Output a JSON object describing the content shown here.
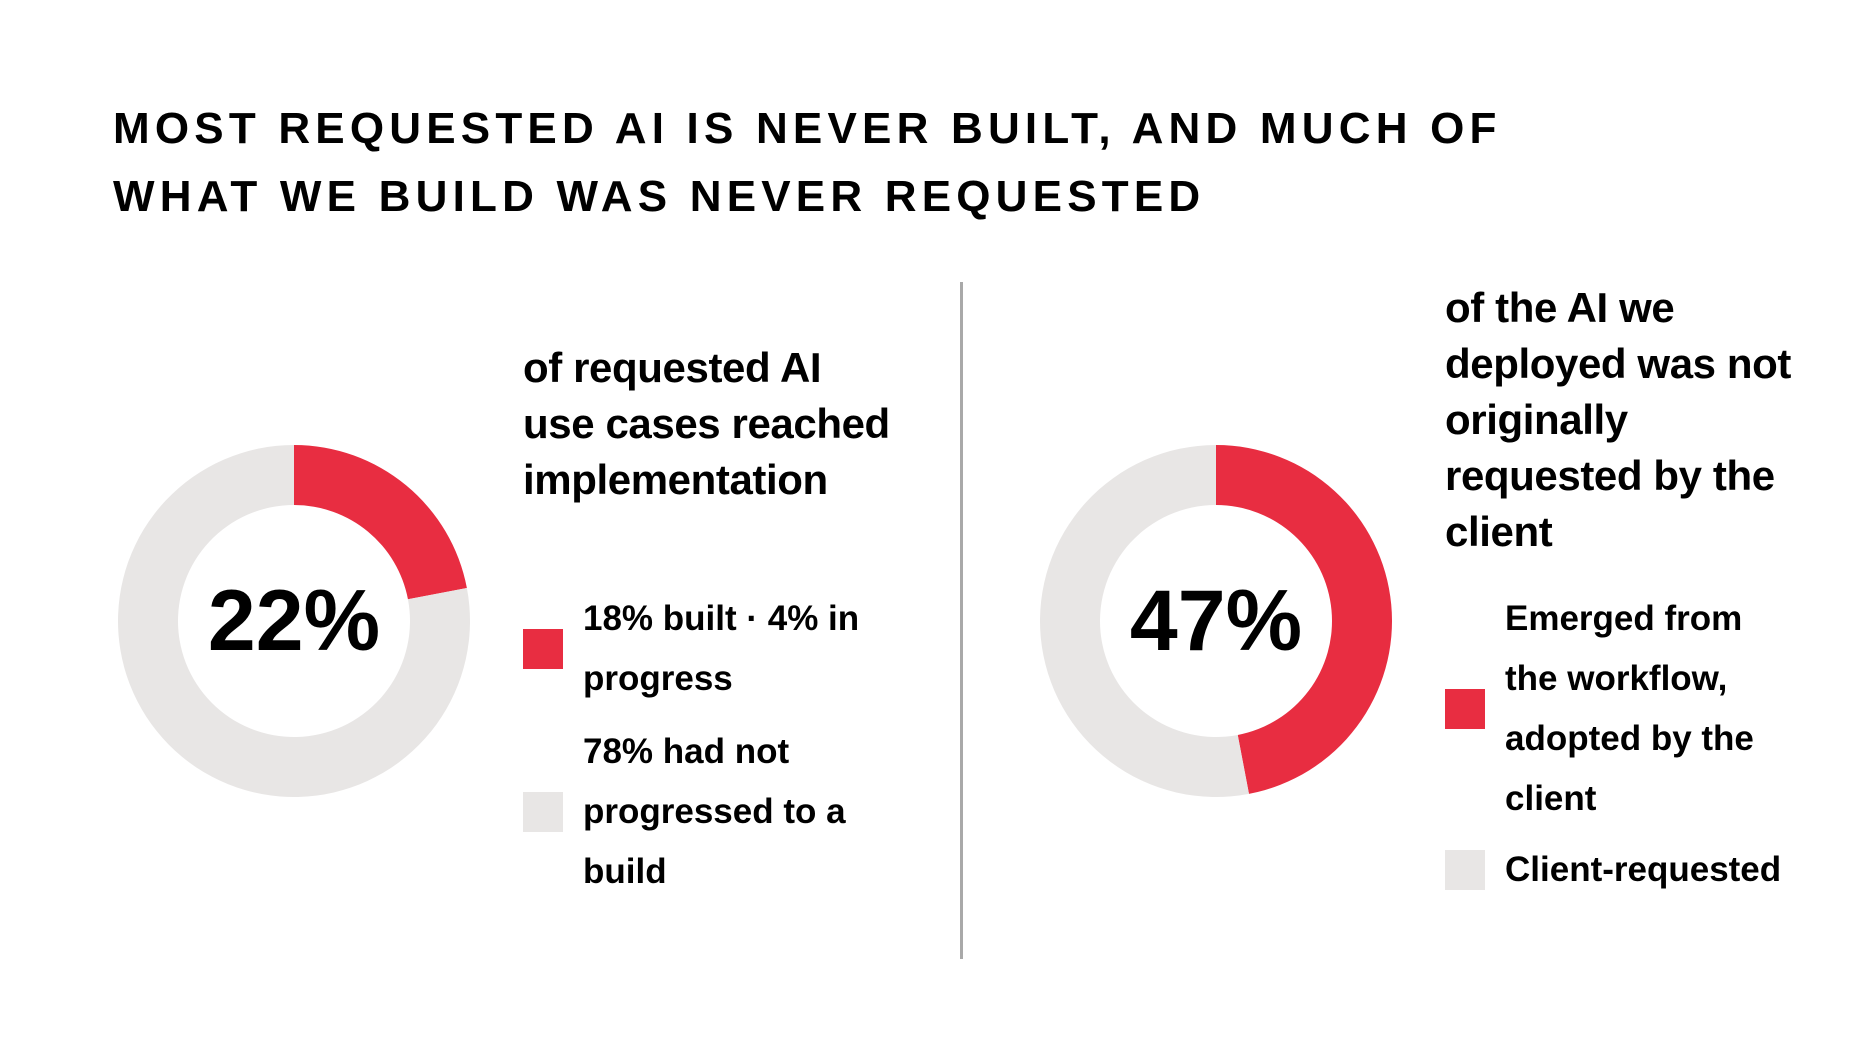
{
  "title": {
    "line1": "MOST REQUESTED AI IS NEVER BUILT, AND MUCH OF",
    "line2": "WHAT WE BUILD WAS NEVER REQUESTED"
  },
  "colors": {
    "highlight": "#e82d41",
    "remainder": "#e8e6e5",
    "divider": "#a9a9a9"
  },
  "chart_data": [
    {
      "type": "pie",
      "center_label": "22%",
      "title": "of requested AI use cases reached implementation",
      "categories": [
        "18% built · 4% in progress",
        "78% had not progressed to a build"
      ],
      "values": [
        22,
        78
      ],
      "colors": [
        "#e82d41",
        "#e8e6e5"
      ]
    },
    {
      "type": "pie",
      "center_label": "47%",
      "title": "of the AI we deployed was not originally requested by the client",
      "categories": [
        "Emerged from the workflow, adopted by the client",
        "Client-requested"
      ],
      "values": [
        47,
        53
      ],
      "colors": [
        "#e82d41",
        "#e8e6e5"
      ]
    }
  ]
}
